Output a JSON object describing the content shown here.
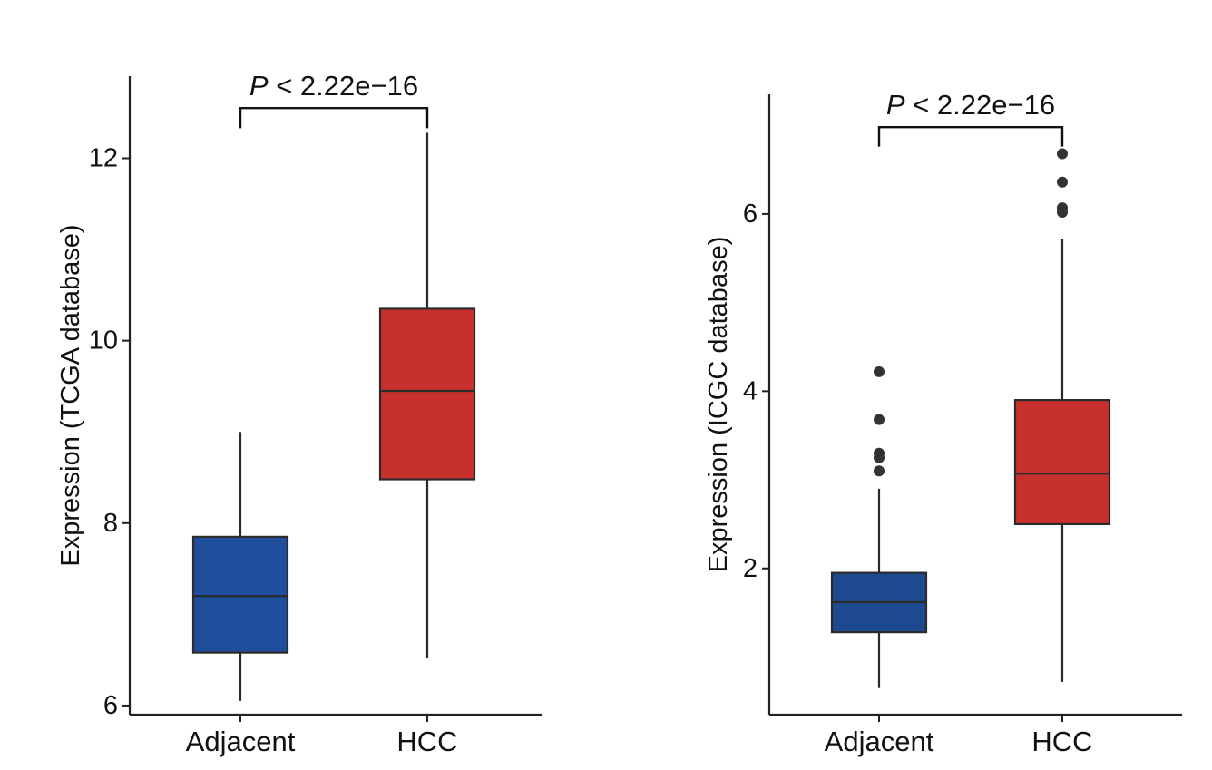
{
  "chart_data": [
    {
      "type": "box",
      "ylabel": "Expression (TCGA database)",
      "categories": [
        "Adjacent",
        "HCC"
      ],
      "ylim": [
        5.9,
        12.9
      ],
      "yticks": [
        6,
        8,
        10,
        12
      ],
      "grid": false,
      "boxes": [
        {
          "category": "Adjacent",
          "color": "#1f4e9c",
          "whisker_low": 6.05,
          "q1": 6.58,
          "median": 7.2,
          "q3": 7.85,
          "whisker_high": 9.0,
          "outliers": []
        },
        {
          "category": "HCC",
          "color": "#c8302d",
          "whisker_low": 6.52,
          "q1": 8.48,
          "median": 9.45,
          "q3": 10.35,
          "whisker_high": 12.28,
          "outliers": []
        }
      ],
      "significance": {
        "label": "P < 2.22e−16",
        "between": [
          "Adjacent",
          "HCC"
        ],
        "y": 12.55,
        "drop": 0.22
      }
    },
    {
      "type": "box",
      "ylabel": "Expression (ICGC database)",
      "categories": [
        "Adjacent",
        "HCC"
      ],
      "ylim": [
        0.35,
        7.35
      ],
      "yticks": [
        2,
        4,
        6
      ],
      "grid": false,
      "boxes": [
        {
          "category": "Adjacent",
          "color": "#1d4a8e",
          "whisker_low": 0.65,
          "q1": 1.28,
          "median": 1.62,
          "q3": 1.95,
          "whisker_high": 2.9,
          "outliers": [
            3.1,
            3.25,
            3.3,
            3.68,
            4.22
          ]
        },
        {
          "category": "HCC",
          "color": "#c8302d",
          "whisker_low": 0.72,
          "q1": 2.5,
          "median": 3.07,
          "q3": 3.9,
          "whisker_high": 5.72,
          "outliers": [
            6.02,
            6.07,
            6.36,
            6.68
          ]
        }
      ],
      "significance": {
        "label": "P < 2.22e−16",
        "between": [
          "Adjacent",
          "HCC"
        ],
        "y": 6.98,
        "drop": 0.22
      }
    }
  ]
}
